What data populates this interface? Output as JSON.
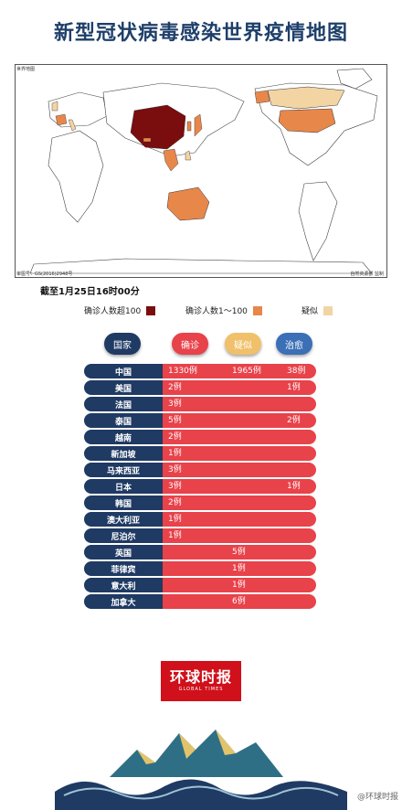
{
  "title": "新型冠状病毒感染世界疫情地图",
  "map": {
    "corner_label": "世界地图",
    "source_label": "审图号：GS(2016)2948号",
    "credit_label": "自然资源部 监制"
  },
  "date_label": "截至1月25日16时00分",
  "legend": [
    {
      "label": "确诊人数超100",
      "color": "#7a0d0d"
    },
    {
      "label": "确诊人数1～100",
      "color": "#e8874a"
    },
    {
      "label": "疑似",
      "color": "#f3d4a3"
    }
  ],
  "headers": [
    {
      "label": "国家",
      "color": "#1f3a63"
    },
    {
      "label": "确诊",
      "color": "#e8424a"
    },
    {
      "label": "疑似",
      "color": "#f0c06a"
    },
    {
      "label": "治愈",
      "color": "#3b6fb6"
    }
  ],
  "rows": [
    {
      "country": "中国",
      "confirmed": "1330例",
      "suspected": "1965例",
      "cured": "38例"
    },
    {
      "country": "美国",
      "confirmed": "2例",
      "suspected": "",
      "cured": "1例"
    },
    {
      "country": "法国",
      "confirmed": "3例",
      "suspected": "",
      "cured": ""
    },
    {
      "country": "泰国",
      "confirmed": "5例",
      "suspected": "",
      "cured": "2例"
    },
    {
      "country": "越南",
      "confirmed": "2例",
      "suspected": "",
      "cured": ""
    },
    {
      "country": "新加坡",
      "confirmed": "1例",
      "suspected": "",
      "cured": ""
    },
    {
      "country": "马来西亚",
      "confirmed": "3例",
      "suspected": "",
      "cured": ""
    },
    {
      "country": "日本",
      "confirmed": "3例",
      "suspected": "",
      "cured": "1例"
    },
    {
      "country": "韩国",
      "confirmed": "2例",
      "suspected": "",
      "cured": ""
    },
    {
      "country": "澳大利亚",
      "confirmed": "1例",
      "suspected": "",
      "cured": ""
    },
    {
      "country": "尼泊尔",
      "confirmed": "1例",
      "suspected": "",
      "cured": ""
    },
    {
      "country": "英国",
      "confirmed": "",
      "suspected": "5例",
      "cured": ""
    },
    {
      "country": "菲律宾",
      "confirmed": "",
      "suspected": "1例",
      "cured": ""
    },
    {
      "country": "意大利",
      "confirmed": "",
      "suspected": "1例",
      "cured": ""
    },
    {
      "country": "加拿大",
      "confirmed": "",
      "suspected": "6例",
      "cured": ""
    }
  ],
  "logo": {
    "main": "环球时报",
    "sub": "GLOBAL TIMES"
  },
  "watermark": "@环球时报"
}
